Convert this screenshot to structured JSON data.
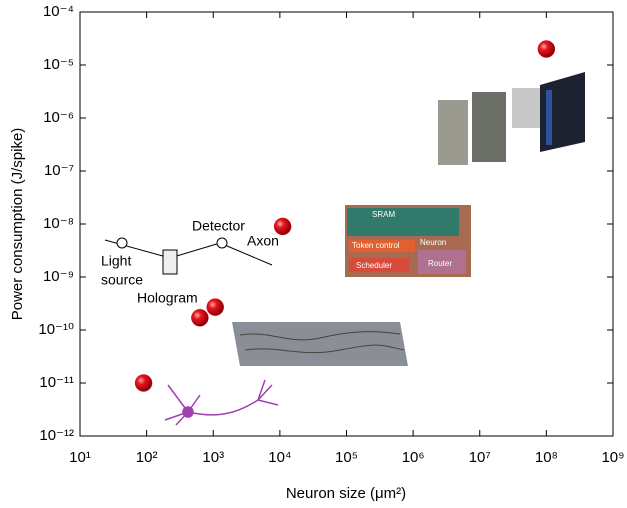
{
  "chart_data": {
    "type": "scatter",
    "xlabel": "Neuron size (μm²)",
    "ylabel": "Power consumption (J/spike)",
    "xscale": "log",
    "yscale": "log",
    "xlim": [
      10,
      1000000000
    ],
    "ylim": [
      1e-12,
      0.0001
    ],
    "xticks": [
      {
        "value": 10,
        "label": "10¹"
      },
      {
        "value": 100,
        "label": "10²"
      },
      {
        "value": 1000,
        "label": "10³"
      },
      {
        "value": 10000,
        "label": "10⁴"
      },
      {
        "value": 100000,
        "label": "10⁵"
      },
      {
        "value": 1000000,
        "label": "10⁶"
      },
      {
        "value": 10000000,
        "label": "10⁷"
      },
      {
        "value": 100000000,
        "label": "10⁸"
      },
      {
        "value": 1000000000,
        "label": "10⁹"
      }
    ],
    "yticks": [
      {
        "value": 1e-12,
        "label": "10⁻¹²"
      },
      {
        "value": 1e-11,
        "label": "10⁻¹¹"
      },
      {
        "value": 1e-10,
        "label": "10⁻¹⁰"
      },
      {
        "value": 1e-09,
        "label": "10⁻⁹"
      },
      {
        "value": 1e-08,
        "label": "10⁻⁸"
      },
      {
        "value": 1e-07,
        "label": "10⁻⁷"
      },
      {
        "value": 1e-06,
        "label": "10⁻⁶"
      },
      {
        "value": 1e-05,
        "label": "10⁻⁵"
      },
      {
        "value": 0.0001,
        "label": "10⁻⁴"
      }
    ],
    "series": [
      {
        "color": "#e0141e",
        "x": [
          90,
          630,
          1070,
          11000,
          100000000
        ],
        "values": [
          1e-11,
          1.7e-10,
          2.7e-10,
          9e-09,
          2e-05
        ]
      }
    ],
    "annotations": [
      "Detector",
      "Axon",
      "Light",
      "source",
      "Hologram",
      "SRAM",
      "Token control",
      "Neuron",
      "Scheduler",
      "Router"
    ]
  }
}
